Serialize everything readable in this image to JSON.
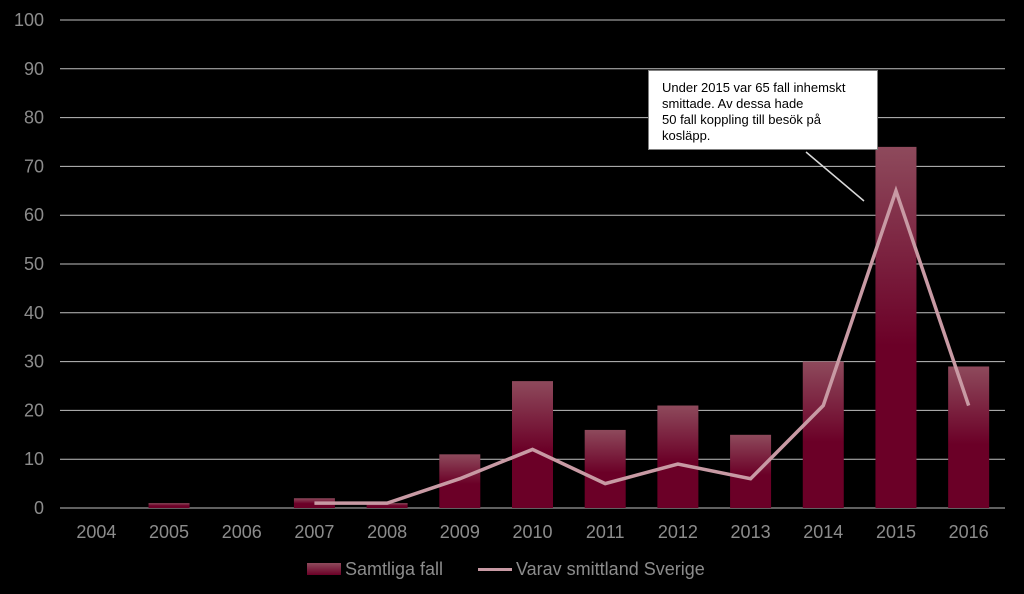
{
  "chart_data": {
    "type": "bar",
    "categories": [
      "2004",
      "2005",
      "2006",
      "2007",
      "2008",
      "2009",
      "2010",
      "2011",
      "2012",
      "2013",
      "2014",
      "2015",
      "2016"
    ],
    "series": [
      {
        "name": "Samtliga fall",
        "type": "bar",
        "values": [
          0,
          1,
          0,
          2,
          1,
          11,
          26,
          16,
          21,
          15,
          30,
          74,
          29
        ]
      },
      {
        "name": "Varav smittland Sverige",
        "type": "line",
        "values": [
          null,
          null,
          null,
          1,
          1,
          6,
          12,
          5,
          9,
          6,
          21,
          65,
          21
        ]
      }
    ],
    "ylim": [
      0,
      100
    ],
    "yticks": [
      "0",
      "10",
      "20",
      "30",
      "40",
      "50",
      "60",
      "70",
      "80",
      "90",
      "100"
    ],
    "grid": true,
    "legend_position": "bottom",
    "annotation": {
      "lines": [
        "Under 2015 var 65 fall inhemskt",
        "smittade. Av dessa hade",
        "50 fall koppling till besök på",
        "kosläpp."
      ],
      "target_category": "2015"
    },
    "colors": {
      "bar_top": "#8e4a5c",
      "bar_bottom": "#6b0027",
      "line": "#c89aa4",
      "grid": "#bfbfbf",
      "tick_text": "#8c8c8c",
      "background": "#000000"
    }
  }
}
